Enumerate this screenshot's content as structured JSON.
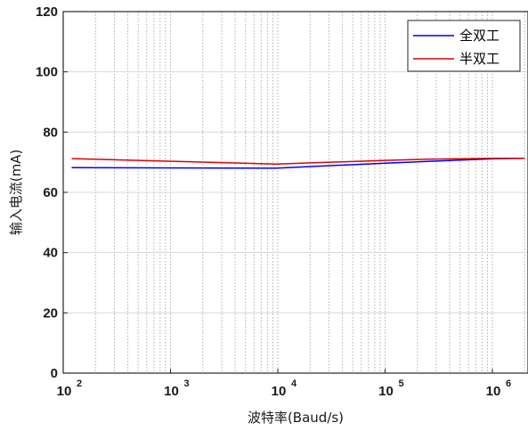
{
  "chart_data": {
    "type": "line",
    "x_scale": "log",
    "xlim": [
      100,
      2000000
    ],
    "ylim": [
      0,
      120
    ],
    "xlabel": "波特率(Baud/s)",
    "ylabel": "输入电流(mA)",
    "x_ticks": [
      100,
      1000,
      10000,
      100000,
      1000000
    ],
    "x_tick_labels": [
      {
        "base": "10",
        "exp": "2"
      },
      {
        "base": "10",
        "exp": "3"
      },
      {
        "base": "10",
        "exp": "4"
      },
      {
        "base": "10",
        "exp": "5"
      },
      {
        "base": "10",
        "exp": "6"
      }
    ],
    "y_ticks": [
      0,
      20,
      40,
      60,
      80,
      100,
      120
    ],
    "y_tick_labels": [
      "0",
      "20",
      "40",
      "60",
      "80",
      "100",
      "120"
    ],
    "grid": {
      "x": "major+minor dotted",
      "y": "major solid"
    },
    "legend_position": "top-right",
    "series": [
      {
        "name": "全双工",
        "color": "#0000ff",
        "points": [
          [
            120,
            68.2
          ],
          [
            9600,
            68.0
          ],
          [
            100000,
            69.7
          ],
          [
            250000,
            70.3
          ],
          [
            1000000,
            71.1
          ],
          [
            2000000,
            71.3
          ]
        ]
      },
      {
        "name": "半双工",
        "color": "#e00000",
        "points": [
          [
            120,
            71.2
          ],
          [
            9600,
            69.4
          ],
          [
            100000,
            70.6
          ],
          [
            250000,
            71.0
          ],
          [
            1000000,
            71.3
          ],
          [
            2000000,
            71.3
          ]
        ]
      }
    ]
  }
}
